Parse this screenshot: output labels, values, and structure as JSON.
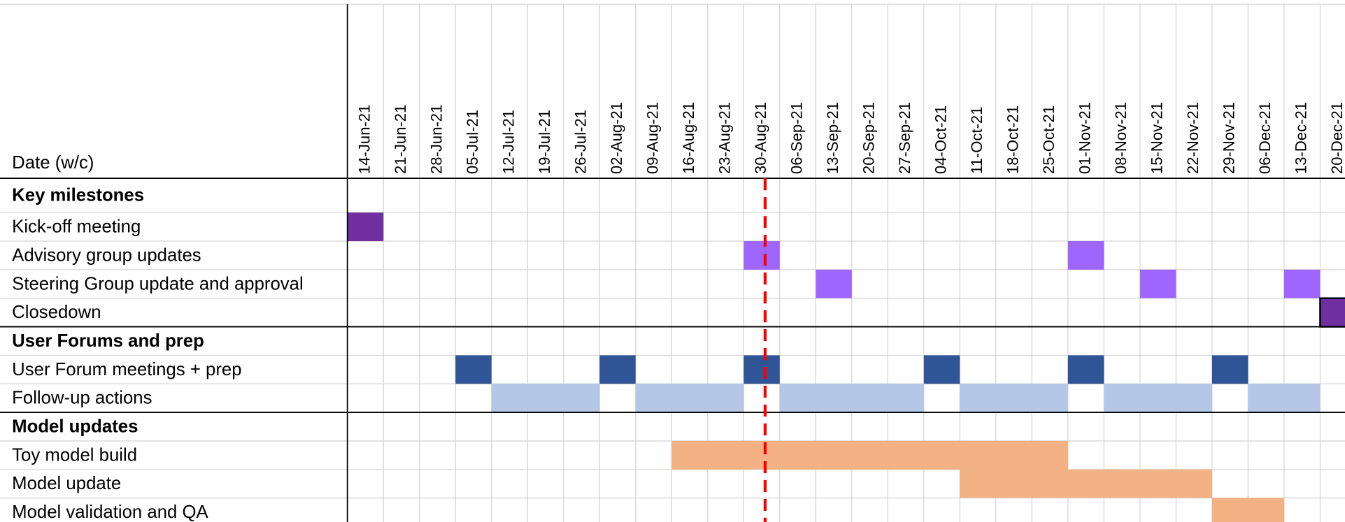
{
  "header": {
    "label": "Date (w/c)"
  },
  "dates": [
    "14-Jun-21",
    "21-Jun-21",
    "28-Jun-21",
    "05-Jul-21",
    "12-Jul-21",
    "19-Jul-21",
    "26-Jul-21",
    "02-Aug-21",
    "09-Aug-21",
    "16-Aug-21",
    "23-Aug-21",
    "30-Aug-21",
    "06-Sep-21",
    "13-Sep-21",
    "20-Sep-21",
    "27-Sep-21",
    "04-Oct-21",
    "11-Oct-21",
    "18-Oct-21",
    "25-Oct-21",
    "01-Nov-21",
    "08-Nov-21",
    "15-Nov-21",
    "22-Nov-21",
    "29-Nov-21",
    "06-Dec-21",
    "13-Dec-21",
    "20-Dec-21"
  ],
  "today": "30-Aug-21",
  "rows": [
    {
      "label": "Key milestones",
      "section": true,
      "bars": []
    },
    {
      "label": "Kick-off meeting",
      "bars": [
        {
          "start": "14-Jun-21",
          "end": "14-Jun-21",
          "color": "#7030a0"
        }
      ]
    },
    {
      "label": "Advisory group updates",
      "bars": [
        {
          "start": "30-Aug-21",
          "end": "30-Aug-21",
          "color": "#9e66ff"
        },
        {
          "start": "01-Nov-21",
          "end": "01-Nov-21",
          "color": "#9e66ff"
        }
      ]
    },
    {
      "label": "Steering Group update and approval",
      "bars": [
        {
          "start": "13-Sep-21",
          "end": "13-Sep-21",
          "color": "#9e66ff"
        },
        {
          "start": "15-Nov-21",
          "end": "15-Nov-21",
          "color": "#9e66ff"
        },
        {
          "start": "13-Dec-21",
          "end": "13-Dec-21",
          "color": "#9e66ff"
        }
      ]
    },
    {
      "label": "Closedown",
      "bars": [
        {
          "start": "20-Dec-21",
          "end": "20-Dec-21",
          "color": "#7030a0",
          "outline": "#000000"
        }
      ]
    },
    {
      "label": "User Forums and prep",
      "section": true,
      "bars": []
    },
    {
      "label": "User Forum meetings + prep",
      "bars": [
        {
          "start": "05-Jul-21",
          "end": "05-Jul-21",
          "color": "#2f5597"
        },
        {
          "start": "02-Aug-21",
          "end": "02-Aug-21",
          "color": "#2f5597"
        },
        {
          "start": "30-Aug-21",
          "end": "30-Aug-21",
          "color": "#2f5597"
        },
        {
          "start": "04-Oct-21",
          "end": "04-Oct-21",
          "color": "#2f5597"
        },
        {
          "start": "01-Nov-21",
          "end": "01-Nov-21",
          "color": "#2f5597"
        },
        {
          "start": "29-Nov-21",
          "end": "29-Nov-21",
          "color": "#2f5597"
        }
      ]
    },
    {
      "label": "Follow-up actions",
      "bars": [
        {
          "start": "12-Jul-21",
          "end": "26-Jul-21",
          "color": "#b4c7e7"
        },
        {
          "start": "09-Aug-21",
          "end": "23-Aug-21",
          "color": "#b4c7e7"
        },
        {
          "start": "06-Sep-21",
          "end": "27-Sep-21",
          "color": "#b4c7e7"
        },
        {
          "start": "11-Oct-21",
          "end": "25-Oct-21",
          "color": "#b4c7e7"
        },
        {
          "start": "08-Nov-21",
          "end": "22-Nov-21",
          "color": "#b4c7e7"
        },
        {
          "start": "06-Dec-21",
          "end": "13-Dec-21",
          "color": "#b4c7e7"
        }
      ]
    },
    {
      "label": "Model updates",
      "section": true,
      "bars": []
    },
    {
      "label": "Toy model build",
      "bars": [
        {
          "start": "16-Aug-21",
          "end": "25-Oct-21",
          "color": "#f4b183"
        }
      ]
    },
    {
      "label": "Model update",
      "bars": [
        {
          "start": "11-Oct-21",
          "end": "22-Nov-21",
          "color": "#f4b183"
        }
      ]
    },
    {
      "label": "Model validation and QA",
      "bars": [
        {
          "start": "29-Nov-21",
          "end": "06-Dec-21",
          "color": "#f4b183"
        }
      ]
    }
  ]
}
